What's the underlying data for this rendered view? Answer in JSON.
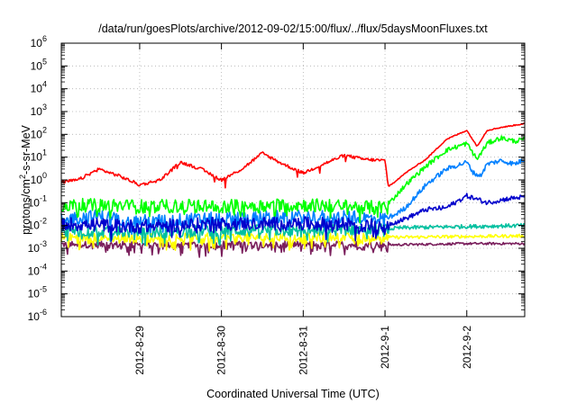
{
  "chart_data": {
    "type": "line",
    "title": "/data/run/goesPlots/archive/2012-09-02/15:00/flux/../flux/5daysMoonFluxes.txt",
    "xlabel": "Coordinated Universal Time (UTC)",
    "ylabel": {
      "base": "protons/cm",
      "sup": "2",
      "rest": "-s-sr-MeV"
    },
    "x_range": [
      "2012-08-28T01:00",
      "2012-09-02T17:00"
    ],
    "x_ticks": [
      {
        "date": "2012-08-29T00:00",
        "label": "2012-8-29"
      },
      {
        "date": "2012-08-30T00:00",
        "label": "2012-8-30"
      },
      {
        "date": "2012-08-31T00:00",
        "label": "2012-8-31"
      },
      {
        "date": "2012-09-01T00:00",
        "label": "2012-9-1"
      },
      {
        "date": "2012-09-02T00:00",
        "label": "2012-9-2"
      }
    ],
    "y_scale": "log",
    "ylim": [
      1e-06,
      1000000.0
    ],
    "y_ticks": [
      {
        "value": 1e-06,
        "base": "10",
        "exp": "-6"
      },
      {
        "value": 1e-05,
        "base": "10",
        "exp": "-5"
      },
      {
        "value": 0.0001,
        "base": "10",
        "exp": "-4"
      },
      {
        "value": 0.001,
        "base": "10",
        "exp": "-3"
      },
      {
        "value": 0.01,
        "base": "10",
        "exp": "-2"
      },
      {
        "value": 0.1,
        "base": "10",
        "exp": "-1"
      },
      {
        "value": 1,
        "base": "10",
        "exp": "0"
      },
      {
        "value": 10,
        "base": "10",
        "exp": "1"
      },
      {
        "value": 100,
        "base": "10",
        "exp": "2"
      },
      {
        "value": 1000,
        "base": "10",
        "exp": "3"
      },
      {
        "value": 10000,
        "base": "10",
        "exp": "4"
      },
      {
        "value": 100000,
        "base": "10",
        "exp": "5"
      },
      {
        "value": 1000000,
        "base": "10",
        "exp": "6"
      }
    ],
    "grid": true,
    "noise_end": "2012-09-01T01:00",
    "series": [
      {
        "color": "#7a1f5c",
        "noise": 0.15,
        "spikes": 0.25,
        "points": [
          [
            "2012-08-28T01:00",
            0.0015
          ],
          [
            "2012-08-29T00:00",
            0.0014
          ],
          [
            "2012-08-30T00:00",
            0.0015
          ],
          [
            "2012-08-31T00:00",
            0.0015
          ],
          [
            "2012-09-01T00:00",
            0.0014
          ],
          [
            "2012-09-02T00:00",
            0.0016
          ],
          [
            "2012-09-02T17:00",
            0.0016
          ]
        ]
      },
      {
        "color": "#ffff00",
        "noise": 0.2,
        "spikes": 0.2,
        "points": [
          [
            "2012-08-28T01:00",
            0.003
          ],
          [
            "2012-08-29T00:00",
            0.0028
          ],
          [
            "2012-08-30T00:00",
            0.003
          ],
          [
            "2012-08-31T00:00",
            0.003
          ],
          [
            "2012-09-01T00:00",
            0.003
          ],
          [
            "2012-09-02T00:00",
            0.0033
          ],
          [
            "2012-09-02T17:00",
            0.0035
          ]
        ]
      },
      {
        "color": "#00c0a0",
        "noise": 0.25,
        "spikes": 0.15,
        "points": [
          [
            "2012-08-28T01:00",
            0.006
          ],
          [
            "2012-08-29T00:00",
            0.005
          ],
          [
            "2012-08-30T00:00",
            0.006
          ],
          [
            "2012-08-31T00:00",
            0.006
          ],
          [
            "2012-09-01T00:00",
            0.007
          ],
          [
            "2012-09-01T06:00",
            0.008
          ],
          [
            "2012-09-02T00:00",
            0.009
          ],
          [
            "2012-09-02T17:00",
            0.01
          ]
        ]
      },
      {
        "color": "#0080ff",
        "noise": 0.3,
        "spikes": 0.15,
        "points": [
          [
            "2012-08-28T01:00",
            0.02
          ],
          [
            "2012-08-28T12:00",
            0.025
          ],
          [
            "2012-08-29T00:00",
            0.015
          ],
          [
            "2012-08-30T00:00",
            0.02
          ],
          [
            "2012-08-31T00:00",
            0.025
          ],
          [
            "2012-09-01T00:00",
            0.02
          ],
          [
            "2012-09-01T03:00",
            0.03
          ],
          [
            "2012-09-01T06:00",
            0.06
          ],
          [
            "2012-09-01T12:00",
            0.6
          ],
          [
            "2012-09-01T18:00",
            3
          ],
          [
            "2012-09-02T00:00",
            6
          ],
          [
            "2012-09-02T02:00",
            2
          ],
          [
            "2012-09-02T04:00",
            1.5
          ],
          [
            "2012-09-02T06:00",
            5
          ],
          [
            "2012-09-02T10:00",
            7
          ],
          [
            "2012-09-02T14:00",
            5
          ],
          [
            "2012-09-02T17:00",
            8
          ]
        ]
      },
      {
        "color": "#00ff00",
        "noise": 0.3,
        "spikes": 0.15,
        "points": [
          [
            "2012-08-28T01:00",
            0.08
          ],
          [
            "2012-08-29T00:00",
            0.07
          ],
          [
            "2012-08-30T00:00",
            0.07
          ],
          [
            "2012-08-31T00:00",
            0.08
          ],
          [
            "2012-09-01T00:00",
            0.06
          ],
          [
            "2012-09-01T06:00",
            0.6
          ],
          [
            "2012-09-01T12:00",
            4
          ],
          [
            "2012-09-01T18:00",
            20
          ],
          [
            "2012-09-02T00:00",
            40
          ],
          [
            "2012-09-02T03:00",
            8
          ],
          [
            "2012-09-02T06:00",
            40
          ],
          [
            "2012-09-02T10:00",
            70
          ],
          [
            "2012-09-02T14:00",
            50
          ],
          [
            "2012-09-02T17:00",
            60
          ]
        ]
      },
      {
        "color": "#0000cc",
        "noise": 0.3,
        "spikes": 0.15,
        "points": [
          [
            "2012-08-28T01:00",
            0.012
          ],
          [
            "2012-08-29T00:00",
            0.009
          ],
          [
            "2012-08-30T00:00",
            0.012
          ],
          [
            "2012-08-31T00:00",
            0.012
          ],
          [
            "2012-09-01T00:00",
            0.01
          ],
          [
            "2012-09-01T06:00",
            0.02
          ],
          [
            "2012-09-01T12:00",
            0.05
          ],
          [
            "2012-09-01T18:00",
            0.06
          ],
          [
            "2012-09-02T00:00",
            0.2
          ],
          [
            "2012-09-02T06:00",
            0.1
          ],
          [
            "2012-09-02T12:00",
            0.15
          ],
          [
            "2012-09-02T17:00",
            0.18
          ]
        ]
      },
      {
        "color": "#ff0000",
        "noise": 0.07,
        "spikes": 0.02,
        "points": [
          [
            "2012-08-28T01:00",
            0.8
          ],
          [
            "2012-08-28T06:00",
            1
          ],
          [
            "2012-08-28T12:00",
            3
          ],
          [
            "2012-08-28T18:00",
            1.5
          ],
          [
            "2012-08-29T00:00",
            0.6
          ],
          [
            "2012-08-29T06:00",
            1
          ],
          [
            "2012-08-29T12:00",
            6
          ],
          [
            "2012-08-29T18:00",
            3
          ],
          [
            "2012-08-30T00:00",
            1
          ],
          [
            "2012-08-30T06:00",
            3
          ],
          [
            "2012-08-30T12:00",
            15
          ],
          [
            "2012-08-30T18:00",
            5
          ],
          [
            "2012-08-31T00:00",
            2
          ],
          [
            "2012-08-31T06:00",
            5
          ],
          [
            "2012-08-31T12:00",
            12
          ],
          [
            "2012-08-31T18:00",
            8
          ],
          [
            "2012-09-01T00:00",
            7
          ],
          [
            "2012-09-01T01:00",
            0.5
          ],
          [
            "2012-09-01T06:00",
            2
          ],
          [
            "2012-09-01T12:00",
            8
          ],
          [
            "2012-09-01T18:00",
            60
          ],
          [
            "2012-09-02T00:00",
            150
          ],
          [
            "2012-09-02T03:00",
            30
          ],
          [
            "2012-09-02T06:00",
            150
          ],
          [
            "2012-09-02T10:00",
            200
          ],
          [
            "2012-09-02T14:00",
            250
          ],
          [
            "2012-09-02T17:00",
            300
          ]
        ]
      }
    ]
  }
}
